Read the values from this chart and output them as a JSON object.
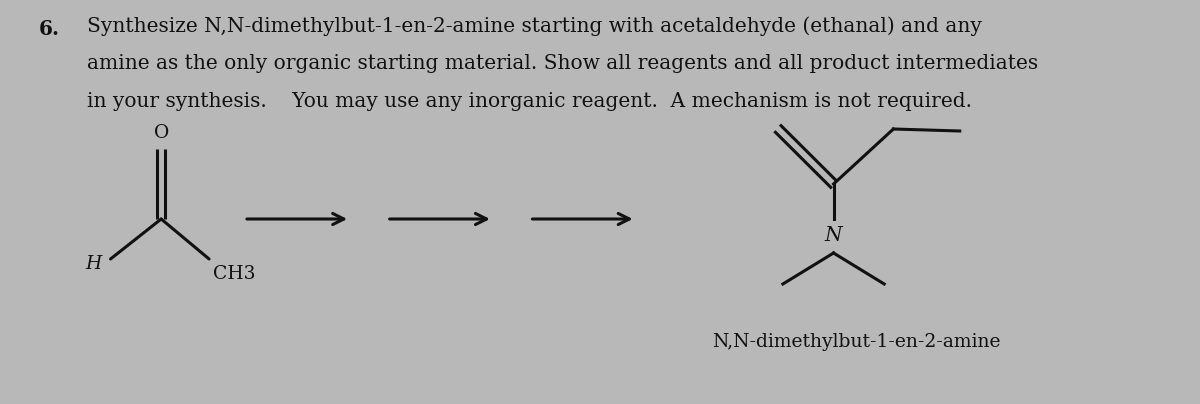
{
  "background_color": "#b8b8b8",
  "title_number": "6.",
  "title_text_line1": "Synthesize N,N-dimethylbut-1-en-2-amine starting with acetaldehyde (ethanal) and any",
  "title_text_line2": "amine as the only organic starting material. Show all reagents and all product intermediates",
  "title_text_line3": "in your synthesis.    You may use any inorganic reagent.  A mechanism is not required.",
  "label_H": "H",
  "label_CH3": "CH3",
  "label_O": "O",
  "label_N": "N",
  "label_product": "N,N-dimethylbut-1-en-2-amine",
  "text_color": "#111111",
  "line_color": "#111111",
  "font_size_title": 14.5,
  "font_size_label": 13.5,
  "font_size_product": 13.5
}
